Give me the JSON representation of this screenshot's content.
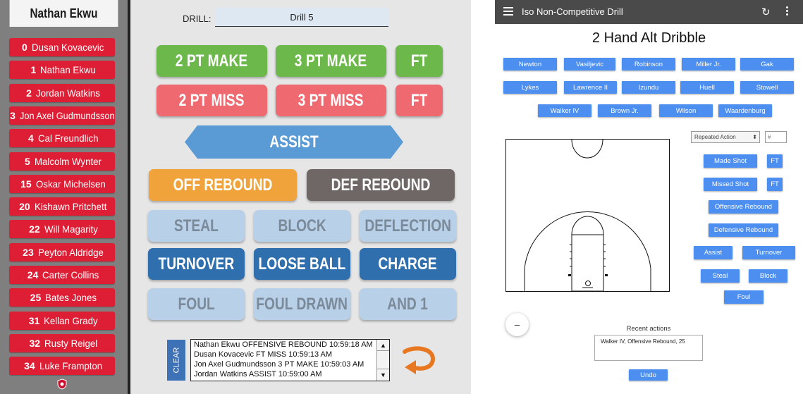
{
  "left": {
    "roster_title": "Nathan Ekwu",
    "players": [
      {
        "num": "0",
        "name": "Dusan Kovacevic"
      },
      {
        "num": "1",
        "name": "Nathan Ekwu"
      },
      {
        "num": "2",
        "name": "Jordan Watkins"
      },
      {
        "num": "3",
        "name": "Jon Axel Gudmundsson"
      },
      {
        "num": "4",
        "name": "Cal Freundlich"
      },
      {
        "num": "5",
        "name": "Malcolm Wynter"
      },
      {
        "num": "15",
        "name": "Oskar Michelsen"
      },
      {
        "num": "20",
        "name": "Kishawn Pritchett"
      },
      {
        "num": "22",
        "name": "Will Magarity"
      },
      {
        "num": "23",
        "name": "Peyton Aldridge"
      },
      {
        "num": "24",
        "name": "Carter Collins"
      },
      {
        "num": "25",
        "name": "Bates Jones"
      },
      {
        "num": "31",
        "name": "Kellan Grady"
      },
      {
        "num": "32",
        "name": "Rusty Reigel"
      },
      {
        "num": "34",
        "name": "Luke Frampton"
      }
    ],
    "drill_label": "DRILL:",
    "drill_value": "Drill 5",
    "buttons": {
      "two_pt_make": "2 PT MAKE",
      "three_pt_make": "3 PT MAKE",
      "ft_make": "FT",
      "two_pt_miss": "2 PT MISS",
      "three_pt_miss": "3 PT MISS",
      "ft_miss": "FT",
      "assist": "ASSIST",
      "off_rebound": "OFF REBOUND",
      "def_rebound": "DEF REBOUND",
      "steal": "STEAL",
      "block": "BLOCK",
      "deflection": "DEFLECTION",
      "turnover": "TURNOVER",
      "loose_ball": "LOOSE BALL",
      "charge": "CHARGE",
      "foul": "FOUL",
      "foul_drawn": "FOUL DRAWN",
      "and_one": "AND 1"
    },
    "clear_label": "CLEAR",
    "log": [
      "Nathan Ekwu OFFENSIVE REBOUND 10:59:18 AM",
      "Dusan Kovacevic FT MISS 10:59:13 AM",
      "Jon Axel Gudmundsson 3 PT MAKE 10:59:03 AM",
      "Jordan Watkins ASSIST 10:59:00 AM"
    ],
    "colors": {
      "player_red": "#de1e35",
      "make_green": "#6cb84b",
      "miss_red": "#ee6a70",
      "assist_blue": "#5b9bd5",
      "off_reb_orange": "#f0a33a",
      "def_reb_gray": "#6e6766",
      "light_blue": "#b8d0e8",
      "dark_blue": "#2f6fae",
      "undo_orange": "#e87722"
    }
  },
  "right": {
    "app_title": "Iso Non-Competitive Drill",
    "drill_title": "2 Hand Alt Dribble",
    "players_row1": [
      "Newton",
      "Vasiljevic",
      "Robinson",
      "Miller Jr.",
      "Gak"
    ],
    "players_row2": [
      "Lykes",
      "Lawrence II",
      "Izundu",
      "Huell",
      "Stowell"
    ],
    "players_row3": [
      "Walker IV",
      "Brown Jr.",
      "Wilson",
      "Waardenburg"
    ],
    "action_select": "Repeated Action",
    "number_placeholder": "#",
    "actions": {
      "made_shot": "Made Shot",
      "made_ft": "FT",
      "missed_shot": "Missed Shot",
      "missed_ft": "FT",
      "off_rebound": "Offensive Rebound",
      "def_rebound": "Defensive Rebound",
      "assist": "Assist",
      "turnover": "Turnover",
      "steal": "Steal",
      "block": "Block",
      "foul": "Foul"
    },
    "minus_label": "–",
    "recent_label": "Recent actions",
    "recent_text": "Walker IV, Offensive Rebound, 25",
    "undo_label": "Undo",
    "icons": [
      "menu-icon",
      "refresh-icon",
      "more-vert-icon"
    ],
    "colors": {
      "topbar": "#4a4a4a",
      "button_blue": "#4d8ff0"
    }
  }
}
